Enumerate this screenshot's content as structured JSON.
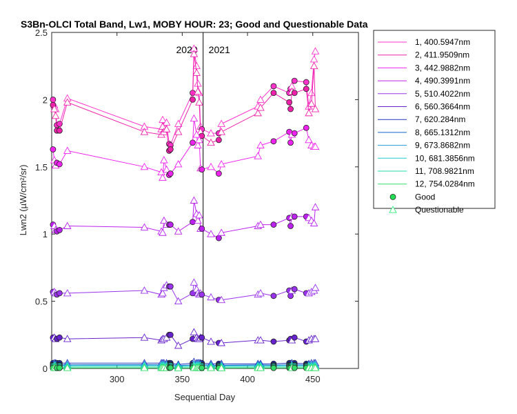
{
  "chart_data": {
    "type": "line",
    "title": "S3Bn-OLCI Total Band, Lw1, MOBY HOUR: 23;  Good and Questionable Data",
    "xlabel": "Sequential Day",
    "ylabel": "Lwn2 (µW/cm²/sr)",
    "xlim": [
      250,
      485
    ],
    "ylim": [
      0,
      2.5
    ],
    "xticks": [
      300,
      350,
      400,
      450
    ],
    "yticks": [
      0,
      0.5,
      1,
      1.5,
      2,
      2.5
    ],
    "xtick_labels": [
      "300",
      "350",
      "400",
      "450"
    ],
    "ytick_labels": [
      "0",
      "0.5",
      "1",
      "1.5",
      "2",
      "2.5"
    ],
    "grid": false,
    "legend_position": "outside-top-right",
    "year_divider": {
      "x": 366,
      "left_label": "2020",
      "right_label": "2021"
    },
    "x": [
      251,
      252,
      253,
      254,
      256,
      262,
      321,
      334,
      335,
      336,
      338,
      340,
      341,
      347,
      358,
      359,
      361,
      362,
      363,
      364,
      365,
      372,
      378,
      380,
      408,
      410,
      420,
      432,
      433,
      434,
      436,
      445,
      447,
      449,
      451,
      452
    ],
    "flags": [
      "g",
      "q",
      "q",
      "g",
      "g",
      "q",
      "q",
      "q",
      "q",
      "q",
      "q",
      "g",
      "g",
      "q",
      "g",
      "q",
      "q",
      "q",
      "q",
      "q",
      "g",
      "q",
      "g",
      "q",
      "q",
      "q",
      "g",
      "g",
      "g",
      "q",
      "g",
      "g",
      "q",
      "q",
      "q",
      "q"
    ],
    "series": [
      {
        "name": "1, 400.5947nm",
        "color": "#ff33cc",
        "values": [
          2.0,
          1.96,
          1.93,
          1.81,
          1.82,
          2.01,
          1.8,
          1.78,
          1.85,
          1.8,
          1.83,
          1.67,
          1.66,
          1.82,
          2.05,
          2.38,
          2.25,
          2.12,
          2.05,
          1.8,
          1.78,
          1.75,
          1.75,
          1.82,
          1.95,
          2.0,
          2.1,
          2.05,
          2.08,
          2.1,
          2.14,
          2.13,
          1.95,
          2.05,
          2.3,
          2.36
        ]
      },
      {
        "name": "2, 411.9509nm",
        "color": "#ee22aa",
        "values": [
          1.96,
          1.93,
          1.88,
          1.77,
          1.77,
          1.98,
          1.76,
          1.74,
          1.8,
          1.76,
          1.78,
          1.62,
          1.63,
          1.76,
          2.0,
          2.34,
          2.2,
          2.06,
          1.98,
          1.76,
          1.73,
          1.68,
          1.7,
          1.76,
          1.9,
          1.94,
          2.05,
          1.98,
          1.93,
          2.06,
          2.05,
          2.08,
          1.9,
          1.97,
          2.25,
          1.93
        ]
      },
      {
        "name": "3, 442.9882nm",
        "color": "#ee22ee",
        "values": [
          1.63,
          1.55,
          1.51,
          1.53,
          1.52,
          1.62,
          1.5,
          1.46,
          1.42,
          1.55,
          1.48,
          1.44,
          1.45,
          1.52,
          1.68,
          1.86,
          1.74,
          1.66,
          1.7,
          1.49,
          1.48,
          1.5,
          1.45,
          1.52,
          1.58,
          1.66,
          1.69,
          1.76,
          1.68,
          1.74,
          1.75,
          1.79,
          1.7,
          1.66,
          1.65,
          1.65
        ]
      },
      {
        "name": "4, 490.3991nm",
        "color": "#bb22ee",
        "values": [
          1.07,
          1.06,
          1.03,
          1.02,
          1.03,
          1.06,
          1.05,
          1.02,
          1.01,
          1.1,
          1.07,
          1.07,
          1.07,
          1.02,
          1.09,
          1.25,
          1.15,
          1.1,
          1.14,
          1.04,
          1.04,
          1.0,
          0.97,
          1.01,
          1.06,
          1.07,
          1.07,
          1.12,
          1.06,
          1.13,
          1.13,
          1.13,
          1.12,
          1.1,
          1.08,
          1.2
        ]
      },
      {
        "name": "5, 510.4022nm",
        "color": "#9933ee",
        "values": [
          0.57,
          0.57,
          0.56,
          0.55,
          0.56,
          0.56,
          0.58,
          0.55,
          0.56,
          0.6,
          0.62,
          0.61,
          0.61,
          0.5,
          0.56,
          0.64,
          0.59,
          0.56,
          0.55,
          0.56,
          0.55,
          0.53,
          0.51,
          0.51,
          0.55,
          0.56,
          0.54,
          0.58,
          0.54,
          0.58,
          0.59,
          0.56,
          0.56,
          0.57,
          0.58,
          0.6
        ]
      },
      {
        "name": "6, 560.3664nm",
        "color": "#6622cc",
        "values": [
          0.23,
          0.23,
          0.22,
          0.22,
          0.23,
          0.22,
          0.23,
          0.21,
          0.22,
          0.22,
          0.23,
          0.25,
          0.25,
          0.17,
          0.22,
          0.27,
          0.23,
          0.22,
          0.22,
          0.23,
          0.23,
          0.2,
          0.19,
          0.19,
          0.21,
          0.21,
          0.2,
          0.21,
          0.22,
          0.21,
          0.23,
          0.2,
          0.21,
          0.22,
          0.22,
          0.22
        ]
      },
      {
        "name": "7,  620.284nm",
        "color": "#2233bb",
        "values": [
          0.04,
          0.04,
          0.04,
          0.04,
          0.04,
          0.04,
          0.04,
          0.04,
          0.04,
          0.04,
          0.04,
          0.04,
          0.04,
          0.03,
          0.04,
          0.05,
          0.04,
          0.04,
          0.04,
          0.04,
          0.04,
          0.035,
          0.035,
          0.035,
          0.035,
          0.035,
          0.035,
          0.04,
          0.04,
          0.04,
          0.04,
          0.035,
          0.035,
          0.04,
          0.04,
          0.04
        ]
      },
      {
        "name": "8, 665.1312nm",
        "color": "#1166cc",
        "values": [
          0.028,
          0.028,
          0.027,
          0.027,
          0.028,
          0.027,
          0.028,
          0.027,
          0.027,
          0.028,
          0.028,
          0.03,
          0.03,
          0.022,
          0.027,
          0.033,
          0.028,
          0.027,
          0.027,
          0.028,
          0.028,
          0.025,
          0.024,
          0.024,
          0.026,
          0.026,
          0.025,
          0.027,
          0.027,
          0.027,
          0.028,
          0.025,
          0.026,
          0.027,
          0.027,
          0.027
        ]
      },
      {
        "name": "9, 673.8682nm",
        "color": "#2299dd",
        "values": [
          0.024,
          0.024,
          0.023,
          0.023,
          0.024,
          0.023,
          0.024,
          0.023,
          0.023,
          0.024,
          0.024,
          0.026,
          0.026,
          0.019,
          0.023,
          0.028,
          0.024,
          0.023,
          0.023,
          0.024,
          0.024,
          0.021,
          0.02,
          0.02,
          0.022,
          0.022,
          0.021,
          0.023,
          0.023,
          0.023,
          0.024,
          0.021,
          0.022,
          0.023,
          0.023,
          0.023
        ]
      },
      {
        "name": "10, 681.3856nm",
        "color": "#22cccc",
        "values": [
          0.022,
          0.022,
          0.021,
          0.021,
          0.022,
          0.021,
          0.022,
          0.021,
          0.021,
          0.022,
          0.022,
          0.024,
          0.024,
          0.017,
          0.021,
          0.026,
          0.022,
          0.021,
          0.021,
          0.022,
          0.022,
          0.019,
          0.018,
          0.018,
          0.02,
          0.02,
          0.019,
          0.021,
          0.021,
          0.021,
          0.022,
          0.019,
          0.02,
          0.021,
          0.021,
          0.021
        ]
      },
      {
        "name": "11, 708.9821nm",
        "color": "#22ddaa",
        "values": [
          0.012,
          0.012,
          0.012,
          0.012,
          0.012,
          0.012,
          0.012,
          0.012,
          0.012,
          0.012,
          0.012,
          0.013,
          0.013,
          0.01,
          0.012,
          0.014,
          0.012,
          0.012,
          0.012,
          0.012,
          0.012,
          0.011,
          0.01,
          0.01,
          0.011,
          0.011,
          0.011,
          0.012,
          0.012,
          0.012,
          0.012,
          0.011,
          0.011,
          0.012,
          0.012,
          0.012
        ]
      },
      {
        "name": "12, 754.0284nm",
        "color": "#33dd66",
        "values": [
          0.004,
          0.004,
          0.004,
          0.004,
          0.004,
          0.004,
          0.004,
          0.004,
          0.004,
          0.004,
          0.004,
          0.005,
          0.005,
          0.003,
          0.004,
          0.005,
          0.004,
          0.004,
          0.004,
          0.004,
          0.004,
          0.004,
          0.003,
          0.003,
          0.004,
          0.004,
          0.004,
          0.004,
          0.004,
          0.004,
          0.004,
          0.004,
          0.004,
          0.004,
          0.004,
          0.004
        ]
      }
    ],
    "marker_legend": {
      "good": {
        "label": "Good",
        "color": "#22dd55"
      },
      "questionable": {
        "label": "Questionable",
        "color": "#44ee88"
      }
    }
  }
}
